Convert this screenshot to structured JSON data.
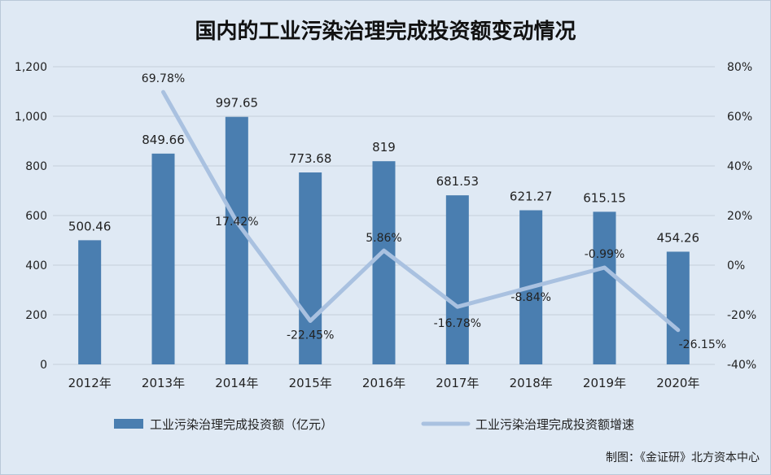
{
  "title": "国内的工业污染治理完成投资额变动情况",
  "source": "制图：《金证研》北方资本中心",
  "colors": {
    "bar": "#4a7eb0",
    "line": "#a9c1e0",
    "grid": "#c4cfda",
    "text": "#222222"
  },
  "chart_data": {
    "type": "bar+line",
    "categories": [
      "2012年",
      "2013年",
      "2014年",
      "2015年",
      "2016年",
      "2017年",
      "2018年",
      "2019年",
      "2020年"
    ],
    "series": [
      {
        "name": "工业污染治理完成投资额（亿元）",
        "type": "bar",
        "axis": "left",
        "values": [
          500.46,
          849.66,
          997.65,
          773.68,
          819,
          681.53,
          621.27,
          615.15,
          454.26
        ],
        "labels": [
          "500.46",
          "849.66",
          "997.65",
          "773.68",
          "819",
          "681.53",
          "621.27",
          "615.15",
          "454.26"
        ]
      },
      {
        "name": "工业污染治理完成投资额增速",
        "type": "line",
        "axis": "right",
        "values": [
          null,
          69.78,
          17.42,
          -22.45,
          5.86,
          -16.78,
          -8.84,
          -0.99,
          -26.15
        ],
        "labels": [
          "",
          "69.78%",
          "17.42%",
          "-22.45%",
          "5.86%",
          "-16.78%",
          "-8.84%",
          "-0.99%",
          "-26.15%"
        ]
      }
    ],
    "y_left": {
      "min": 0,
      "max": 1200,
      "ticks": [
        "0",
        "200",
        "400",
        "600",
        "800",
        "1,000",
        "1,200"
      ]
    },
    "y_right": {
      "min": -40,
      "max": 80,
      "ticks": [
        "-40%",
        "-20%",
        "0%",
        "20%",
        "40%",
        "60%",
        "80%"
      ]
    },
    "grid": true,
    "legend_position": "bottom"
  }
}
